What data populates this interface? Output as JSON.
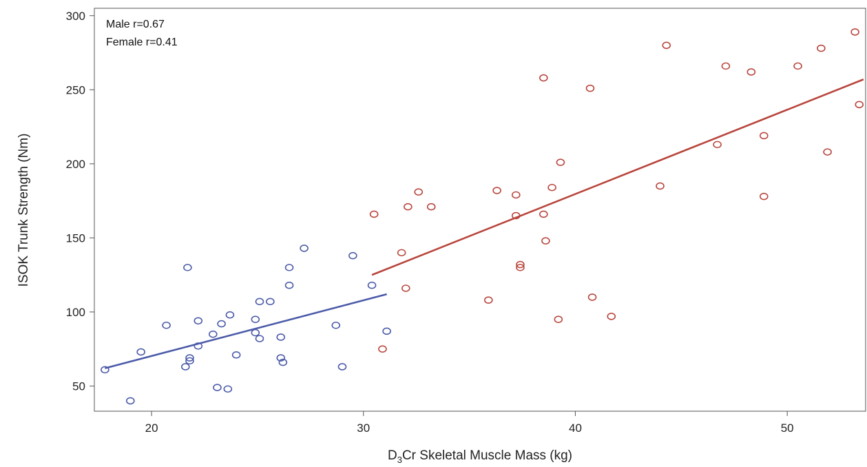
{
  "chart_data": {
    "type": "scatter",
    "xlabel": {
      "main": "D",
      "sub": "3",
      "rest": "Cr Skeletal Muscle Mass (kg)"
    },
    "ylabel": "ISOK Trunk Strength (Nm)",
    "xlim": [
      17.3,
      53.7
    ],
    "ylim": [
      33,
      305
    ],
    "xticks": [
      20,
      30,
      40,
      50
    ],
    "yticks": [
      50,
      100,
      150,
      200,
      250,
      300
    ],
    "grid": false,
    "annotations": [
      "Male r=0.67",
      "Female r=0.41"
    ],
    "annotation_position": "top-left",
    "series": [
      {
        "color": "#4a5aa8",
        "marker": "open-circle",
        "points": [
          [
            17.8,
            61
          ],
          [
            19.0,
            40
          ],
          [
            19.5,
            73
          ],
          [
            20.7,
            91
          ],
          [
            21.6,
            63
          ],
          [
            21.7,
            130
          ],
          [
            21.8,
            67
          ],
          [
            21.8,
            69
          ],
          [
            22.2,
            77
          ],
          [
            22.2,
            94
          ],
          [
            22.9,
            85
          ],
          [
            23.1,
            49
          ],
          [
            23.3,
            92
          ],
          [
            23.6,
            48
          ],
          [
            23.7,
            98
          ],
          [
            24.0,
            71
          ],
          [
            24.9,
            95
          ],
          [
            24.9,
            86
          ],
          [
            25.1,
            82
          ],
          [
            25.1,
            107
          ],
          [
            25.6,
            107
          ],
          [
            26.1,
            69
          ],
          [
            26.1,
            83
          ],
          [
            26.2,
            66
          ],
          [
            26.5,
            118
          ],
          [
            26.5,
            130
          ],
          [
            27.2,
            143
          ],
          [
            28.7,
            91
          ],
          [
            29.0,
            63
          ],
          [
            29.5,
            138
          ],
          [
            30.4,
            118
          ],
          [
            31.1,
            87
          ]
        ],
        "fit": {
          "x": [
            17.8,
            31.1
          ],
          "y": [
            62,
            112
          ]
        }
      },
      {
        "color": "#b8453c",
        "marker": "open-circle",
        "points": [
          [
            30.5,
            166
          ],
          [
            30.9,
            75
          ],
          [
            31.8,
            140
          ],
          [
            32.0,
            116
          ],
          [
            32.1,
            171
          ],
          [
            32.6,
            181
          ],
          [
            33.2,
            171
          ],
          [
            35.9,
            108
          ],
          [
            36.3,
            182
          ],
          [
            37.2,
            179
          ],
          [
            37.2,
            165
          ],
          [
            37.4,
            130
          ],
          [
            37.4,
            132
          ],
          [
            38.5,
            258
          ],
          [
            38.5,
            166
          ],
          [
            38.6,
            148
          ],
          [
            38.9,
            184
          ],
          [
            39.2,
            95
          ],
          [
            39.3,
            201
          ],
          [
            40.7,
            251
          ],
          [
            40.8,
            110
          ],
          [
            41.7,
            97
          ],
          [
            44.0,
            185
          ],
          [
            44.3,
            280
          ],
          [
            46.7,
            213
          ],
          [
            47.1,
            266
          ],
          [
            48.3,
            262
          ],
          [
            48.9,
            219
          ],
          [
            48.9,
            178
          ],
          [
            50.5,
            266
          ],
          [
            51.6,
            278
          ],
          [
            51.9,
            208
          ],
          [
            53.2,
            289
          ],
          [
            53.4,
            240
          ]
        ],
        "fit": {
          "x": [
            30.4,
            53.6
          ],
          "y": [
            125,
            257
          ]
        }
      }
    ]
  }
}
